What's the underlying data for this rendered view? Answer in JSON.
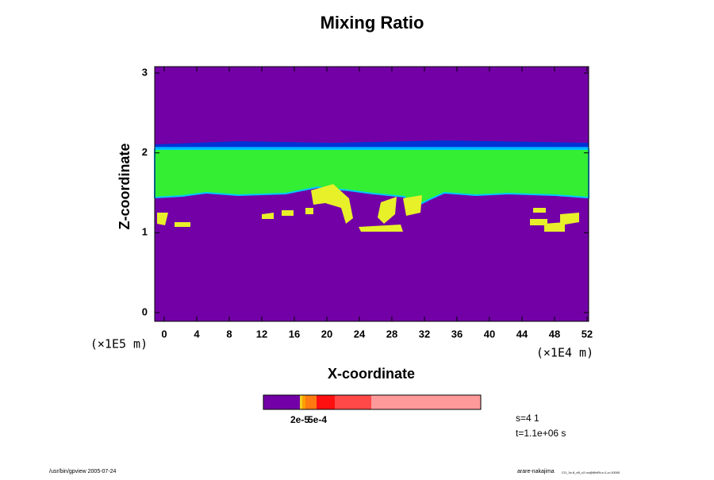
{
  "chart_data": {
    "type": "contour",
    "title": "Mixing Ratio",
    "x_label": "X-coordinate",
    "y_label": "Z-coordinate",
    "x_unit": "(×1E4 m)",
    "y_unit": "(×1E5 m)",
    "xlim": [
      -1.17,
      52.2
    ],
    "ylim": [
      -0.11,
      3.08
    ],
    "xticks": [
      0,
      4,
      8,
      12,
      16,
      20,
      24,
      28,
      32,
      36,
      40,
      44,
      48,
      52
    ],
    "yticks": [
      0,
      1,
      2,
      3
    ],
    "colorbar_labels": [
      "2e-5",
      "5e-4"
    ],
    "annotations": [
      "s=4 1",
      "t=1.1e+06 s"
    ],
    "footer_left": "/usr/bin/gpview 2005-07-24",
    "footer_right": "arare-nakajima",
    "footer_right_small": "CO_1e-6_e5_v2.nc@MixRt,x=1,z=10000"
  }
}
